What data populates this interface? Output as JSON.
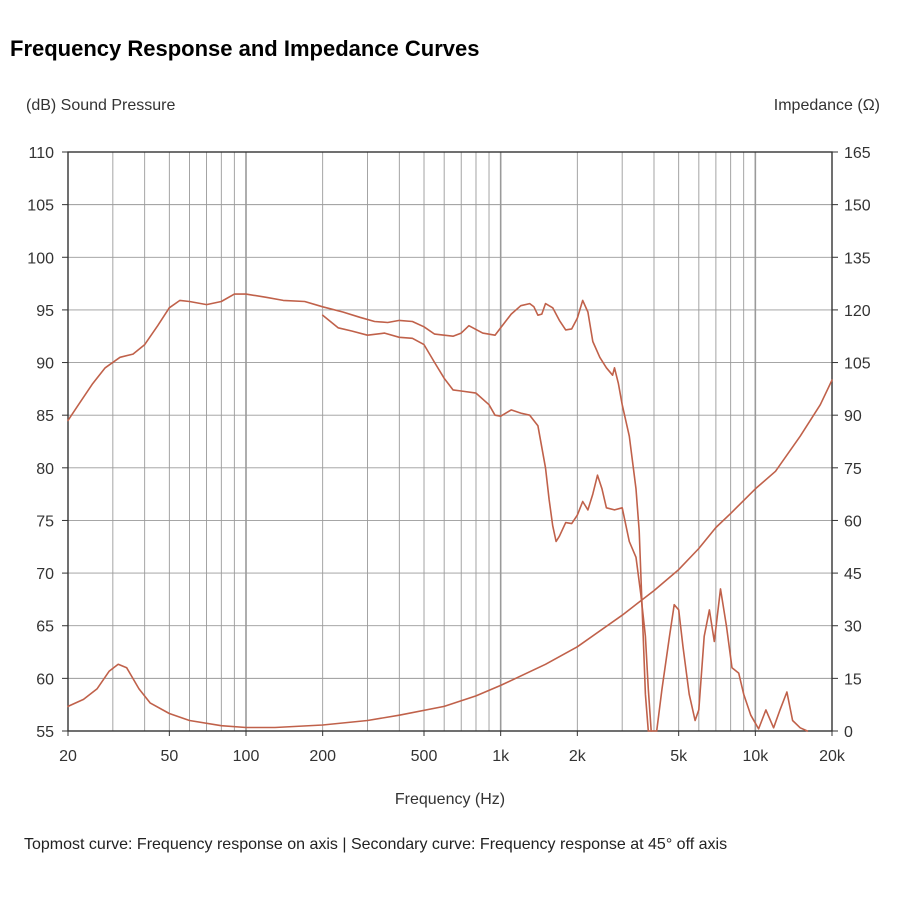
{
  "title": "Frequency Response and Impedance Curves",
  "caption": "Topmost curve: Frequency response on axis  |  Secondary curve: Frequency response at 45° off axis",
  "colors": {
    "curve": "#c0614a",
    "grid": "#9a9a9a",
    "axis": "#333333"
  },
  "chart_data": {
    "type": "line",
    "xlabel": "Frequency (Hz)",
    "ylabel_left": "(dB) Sound Pressure",
    "ylabel_right": "Impedance (Ω)",
    "x_scale": "log",
    "xlim": [
      20,
      20000
    ],
    "ylim_left": [
      55,
      110
    ],
    "ylim_right": [
      0,
      165
    ],
    "grid": true,
    "x_ticks": [
      {
        "value": 20,
        "label": "20"
      },
      {
        "value": 50,
        "label": "50"
      },
      {
        "value": 100,
        "label": "100"
      },
      {
        "value": 200,
        "label": "200"
      },
      {
        "value": 500,
        "label": "500"
      },
      {
        "value": 1000,
        "label": "1k"
      },
      {
        "value": 2000,
        "label": "2k"
      },
      {
        "value": 5000,
        "label": "5k"
      },
      {
        "value": 10000,
        "label": "10k"
      },
      {
        "value": 20000,
        "label": "20k"
      }
    ],
    "y_ticks_left": [
      "110",
      "105",
      "100",
      "95",
      "90",
      "85",
      "80",
      "75",
      "70",
      "65",
      "60",
      "55"
    ],
    "y_ticks_right": [
      "165",
      "150",
      "135",
      "120",
      "105",
      "90",
      "75",
      "60",
      "45",
      "30",
      "15",
      "0"
    ],
    "series": [
      {
        "axis": "left",
        "points": [
          [
            20,
            84.5
          ],
          [
            22,
            86
          ],
          [
            25,
            88
          ],
          [
            28,
            89.5
          ],
          [
            32,
            90.5
          ],
          [
            36,
            90.8
          ],
          [
            40,
            91.7
          ],
          [
            45,
            93.5
          ],
          [
            50,
            95.2
          ],
          [
            55,
            95.9
          ],
          [
            60,
            95.8
          ],
          [
            70,
            95.5
          ],
          [
            80,
            95.8
          ],
          [
            90,
            96.5
          ],
          [
            100,
            96.5
          ],
          [
            120,
            96.2
          ],
          [
            140,
            95.9
          ],
          [
            170,
            95.8
          ],
          [
            200,
            95.3
          ],
          [
            240,
            94.8
          ],
          [
            280,
            94.3
          ],
          [
            320,
            93.9
          ],
          [
            360,
            93.8
          ],
          [
            400,
            94.0
          ],
          [
            450,
            93.9
          ],
          [
            500,
            93.4
          ],
          [
            550,
            92.7
          ],
          [
            600,
            92.6
          ],
          [
            650,
            92.5
          ],
          [
            700,
            92.8
          ],
          [
            750,
            93.5
          ],
          [
            850,
            92.8
          ],
          [
            950,
            92.6
          ],
          [
            1000,
            93.3
          ],
          [
            1100,
            94.6
          ],
          [
            1200,
            95.4
          ],
          [
            1300,
            95.6
          ],
          [
            1350,
            95.3
          ],
          [
            1400,
            94.5
          ],
          [
            1450,
            94.6
          ],
          [
            1500,
            95.6
          ],
          [
            1600,
            95.2
          ],
          [
            1700,
            94.0
          ],
          [
            1800,
            93.1
          ],
          [
            1900,
            93.2
          ],
          [
            2000,
            94.2
          ],
          [
            2100,
            95.9
          ],
          [
            2200,
            94.8
          ],
          [
            2300,
            92.0
          ],
          [
            2450,
            90.5
          ],
          [
            2600,
            89.5
          ],
          [
            2750,
            88.8
          ],
          [
            2800,
            89.5
          ],
          [
            2900,
            88.0
          ],
          [
            3000,
            86.0
          ],
          [
            3200,
            83.0
          ],
          [
            3400,
            78.0
          ],
          [
            3500,
            74.0
          ],
          [
            3700,
            58.5
          ],
          [
            3800,
            55.0
          ],
          [
            4100,
            55.0
          ],
          [
            4300,
            59.0
          ],
          [
            4600,
            64.0
          ],
          [
            4800,
            67.0
          ],
          [
            5000,
            66.5
          ],
          [
            5200,
            63.0
          ],
          [
            5500,
            58.5
          ],
          [
            5800,
            56.0
          ],
          [
            6000,
            57.0
          ],
          [
            6300,
            64.0
          ],
          [
            6600,
            66.5
          ],
          [
            6900,
            63.5
          ],
          [
            7300,
            68.5
          ],
          [
            7700,
            65.0
          ],
          [
            8100,
            61.0
          ],
          [
            8600,
            60.5
          ],
          [
            9000,
            58.5
          ],
          [
            9600,
            56.5
          ],
          [
            10300,
            55.2
          ],
          [
            11000,
            57.0
          ],
          [
            11800,
            55.3
          ],
          [
            12500,
            57.0
          ],
          [
            13300,
            58.7
          ],
          [
            14000,
            56.0
          ],
          [
            15000,
            55.3
          ],
          [
            16000,
            55.0
          ]
        ]
      },
      {
        "axis": "left",
        "points": [
          [
            200,
            94.5
          ],
          [
            230,
            93.3
          ],
          [
            260,
            93.0
          ],
          [
            300,
            92.6
          ],
          [
            350,
            92.8
          ],
          [
            400,
            92.4
          ],
          [
            450,
            92.3
          ],
          [
            500,
            91.7
          ],
          [
            550,
            90.0
          ],
          [
            600,
            88.5
          ],
          [
            650,
            87.4
          ],
          [
            700,
            87.3
          ],
          [
            800,
            87.1
          ],
          [
            900,
            86.0
          ],
          [
            950,
            85.0
          ],
          [
            1000,
            84.9
          ],
          [
            1100,
            85.5
          ],
          [
            1200,
            85.2
          ],
          [
            1300,
            85.0
          ],
          [
            1400,
            84.0
          ],
          [
            1500,
            80.0
          ],
          [
            1550,
            77.0
          ],
          [
            1600,
            74.5
          ],
          [
            1650,
            73.0
          ],
          [
            1700,
            73.5
          ],
          [
            1800,
            74.8
          ],
          [
            1900,
            74.7
          ],
          [
            2000,
            75.5
          ],
          [
            2100,
            76.8
          ],
          [
            2200,
            76.0
          ],
          [
            2300,
            77.5
          ],
          [
            2400,
            79.3
          ],
          [
            2500,
            78.0
          ],
          [
            2600,
            76.2
          ],
          [
            2800,
            76.0
          ],
          [
            3000,
            76.2
          ],
          [
            3200,
            73.0
          ],
          [
            3400,
            71.5
          ],
          [
            3550,
            68.0
          ],
          [
            3700,
            64.0
          ],
          [
            3800,
            59.0
          ],
          [
            3900,
            55.0
          ]
        ]
      },
      {
        "axis": "right",
        "points": [
          [
            20,
            7
          ],
          [
            23,
            9
          ],
          [
            26,
            12
          ],
          [
            29,
            17
          ],
          [
            31.5,
            19
          ],
          [
            34,
            18
          ],
          [
            38,
            12
          ],
          [
            42,
            8
          ],
          [
            50,
            5
          ],
          [
            60,
            3
          ],
          [
            80,
            1.5
          ],
          [
            100,
            1
          ],
          [
            130,
            1
          ],
          [
            200,
            1.7
          ],
          [
            300,
            3
          ],
          [
            400,
            4.5
          ],
          [
            600,
            7
          ],
          [
            800,
            10
          ],
          [
            1000,
            13
          ],
          [
            1500,
            19
          ],
          [
            2000,
            24
          ],
          [
            3000,
            33
          ],
          [
            4000,
            40
          ],
          [
            5000,
            46
          ],
          [
            6000,
            52
          ],
          [
            7000,
            58
          ],
          [
            8000,
            62
          ],
          [
            10000,
            69
          ],
          [
            12000,
            74
          ],
          [
            15000,
            84
          ],
          [
            18000,
            93
          ],
          [
            20000,
            100
          ]
        ]
      }
    ]
  }
}
